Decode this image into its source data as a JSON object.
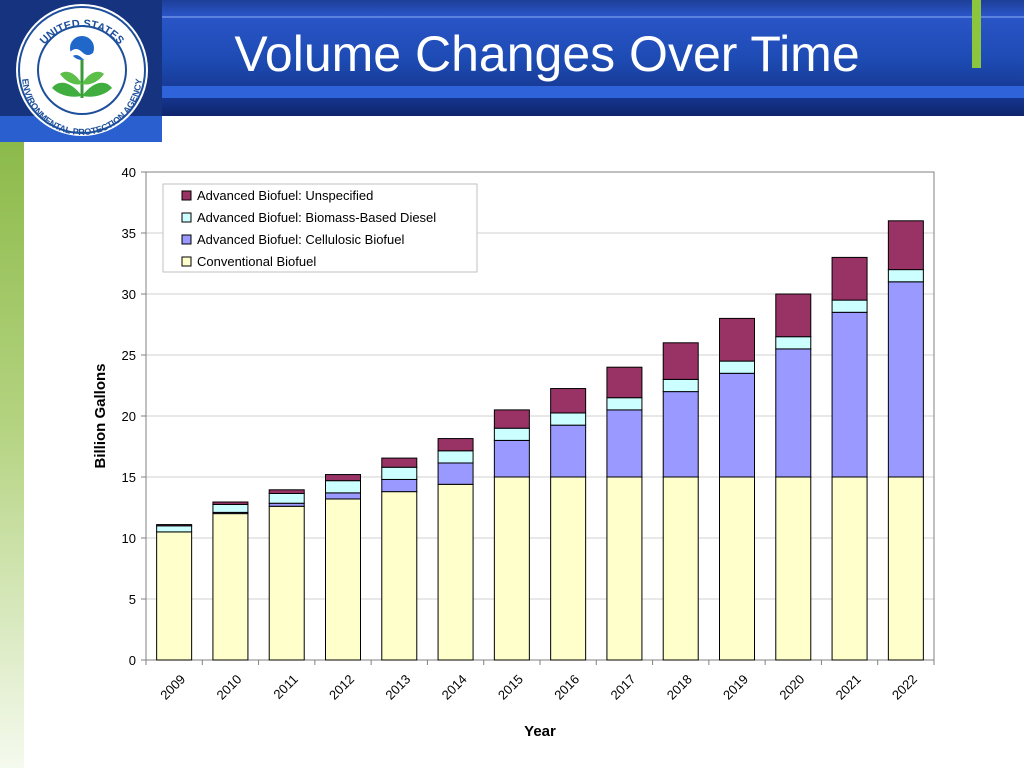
{
  "slide": {
    "title": "Volume Changes Over Time",
    "logo_text_top": "UNITED STATES",
    "logo_text_bottom": "ENVIRONMENTAL PROTECTION AGENCY"
  },
  "colors": {
    "conventional": "#ffffcc",
    "cellulosic": "#9999ff",
    "biomass": "#ccffff",
    "unspecified": "#993366",
    "header_blue": "#1d4bb3",
    "accent_green": "#8cc63e"
  },
  "chart_data": {
    "type": "bar",
    "stacked": true,
    "title": "",
    "xlabel": "Year",
    "ylabel": "Billion Gallons",
    "ylim": [
      0,
      40
    ],
    "yticks": [
      "0",
      "5",
      "10",
      "15",
      "20",
      "25",
      "30",
      "35",
      "40"
    ],
    "grid": true,
    "legend_position": "top-left",
    "categories": [
      "2009",
      "2010",
      "2011",
      "2012",
      "2013",
      "2014",
      "2015",
      "2016",
      "2017",
      "2018",
      "2019",
      "2020",
      "2021",
      "2022"
    ],
    "series": [
      {
        "name": "Conventional Biofuel",
        "values": [
          10.5,
          12.0,
          12.6,
          13.2,
          13.8,
          14.4,
          15.0,
          15.0,
          15.0,
          15.0,
          15.0,
          15.0,
          15.0,
          15.0
        ]
      },
      {
        "name": "Advanced Biofuel: Cellulosic Biofuel",
        "values": [
          0,
          0.1,
          0.25,
          0.5,
          1.0,
          1.75,
          3.0,
          4.25,
          5.5,
          7.0,
          8.5,
          10.5,
          13.5,
          16.0
        ]
      },
      {
        "name": "Advanced Biofuel: Biomass-Based Diesel",
        "values": [
          0.5,
          0.65,
          0.8,
          1.0,
          1.0,
          1.0,
          1.0,
          1.0,
          1.0,
          1.0,
          1.0,
          1.0,
          1.0,
          1.0
        ]
      },
      {
        "name": "Advanced Biofuel: Unspecified",
        "values": [
          0.1,
          0.2,
          0.3,
          0.5,
          0.75,
          1.0,
          1.5,
          2.0,
          2.5,
          3.0,
          3.5,
          3.5,
          3.5,
          4.0
        ]
      }
    ],
    "legend_order": [
      "Advanced Biofuel: Unspecified",
      "Advanced Biofuel: Biomass-Based Diesel",
      "Advanced Biofuel: Cellulosic Biofuel",
      "Conventional Biofuel"
    ]
  }
}
